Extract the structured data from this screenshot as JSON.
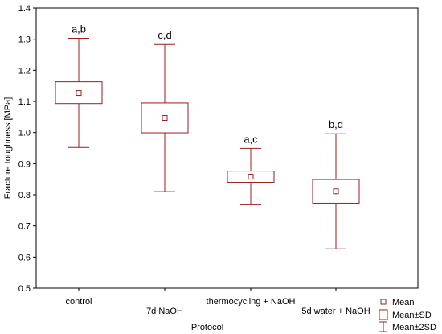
{
  "chart_data": {
    "type": "box",
    "xlabel": "Protocol",
    "ylabel": "Fracture toughness [MPa]",
    "ylim": [
      0.5,
      1.4
    ],
    "yticks": [
      "0.5",
      "0.6",
      "0.7",
      "0.8",
      "0.9",
      "1.0",
      "1.1",
      "1.2",
      "1.3",
      "1.4"
    ],
    "grid": false,
    "legend_position": "bottom-right",
    "categories": [
      "control",
      "7d NaOH",
      "thermocycling + NaOH",
      "5d water + NaOH"
    ],
    "groups": [
      {
        "category": "control",
        "mean": 1.127,
        "sd_low": 1.093,
        "sd_high": 1.163,
        "sd2_low": 0.952,
        "sd2_high": 1.303,
        "letters": "a,b"
      },
      {
        "category": "7d NaOH",
        "mean": 1.047,
        "sd_low": 0.999,
        "sd_high": 1.095,
        "sd2_low": 0.81,
        "sd2_high": 1.283,
        "letters": "c,d"
      },
      {
        "category": "thermocycling + NaOH",
        "mean": 0.858,
        "sd_low": 0.84,
        "sd_high": 0.876,
        "sd2_low": 0.768,
        "sd2_high": 0.949,
        "letters": "a,c"
      },
      {
        "category": "5d water + NaOH",
        "mean": 0.811,
        "sd_low": 0.773,
        "sd_high": 0.849,
        "sd2_low": 0.626,
        "sd2_high": 0.996,
        "letters": "b,d"
      }
    ],
    "legend": [
      "Mean",
      "Mean±SD",
      "Mean±2SD"
    ],
    "colors": {
      "series": "#9b1c1c",
      "axis": "#000000",
      "background": "#ffffff"
    }
  }
}
